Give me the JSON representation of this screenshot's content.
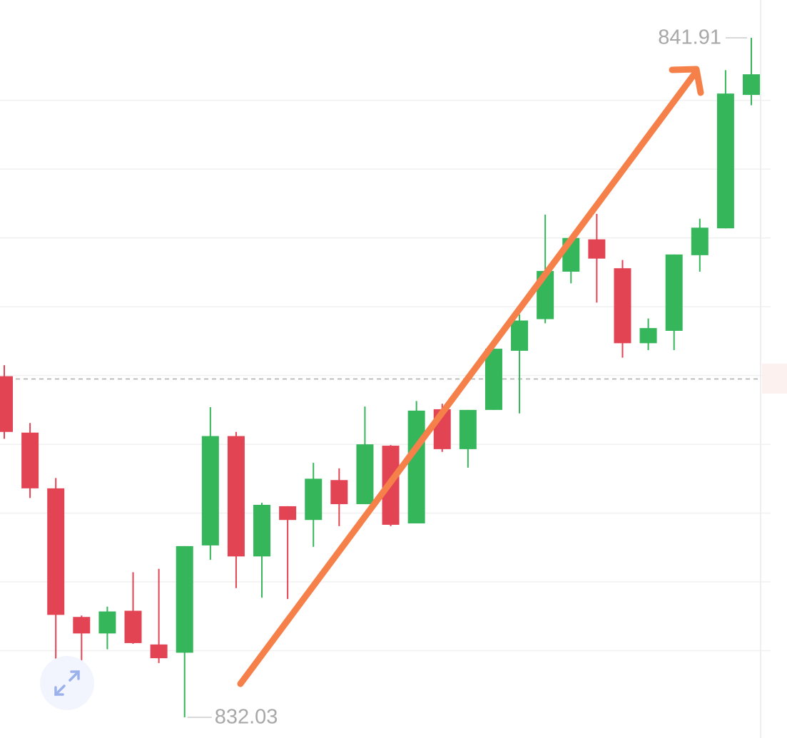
{
  "chart_data": {
    "type": "candlestick",
    "open": [
      836.99,
      836.17,
      835.36,
      833.49,
      833.25,
      833.58,
      833.09,
      832.97,
      834.53,
      836.12,
      834.37,
      835.1,
      834.9,
      835.48,
      835.13,
      835.98,
      834.85,
      836.51,
      835.93,
      836.5,
      837.36,
      837.82,
      838.51,
      838.98,
      838.56,
      837.47,
      837.65,
      838.75,
      839.14,
      841.08
    ],
    "high": [
      837.15,
      836.31,
      835.51,
      833.51,
      833.64,
      834.14,
      834.19,
      834.52,
      836.54,
      836.18,
      835.15,
      835.1,
      835.73,
      835.65,
      836.55,
      835.99,
      836.63,
      836.59,
      836.5,
      837.39,
      837.89,
      839.34,
      839.0,
      839.35,
      838.68,
      837.83,
      838.76,
      839.28,
      841.44,
      841.91
    ],
    "low": [
      836.08,
      835.22,
      832.53,
      832.35,
      833.02,
      833.1,
      832.82,
      832.03,
      834.32,
      833.91,
      833.77,
      833.75,
      834.51,
      834.81,
      835.13,
      834.81,
      834.85,
      835.89,
      835.66,
      836.5,
      836.45,
      837.76,
      838.34,
      838.06,
      837.26,
      837.37,
      837.37,
      838.51,
      839.14,
      840.93
    ],
    "close": [
      836.18,
      835.36,
      833.52,
      833.25,
      833.57,
      833.11,
      832.89,
      834.52,
      836.12,
      834.37,
      835.12,
      834.9,
      835.5,
      835.13,
      836.0,
      834.83,
      836.49,
      835.93,
      836.5,
      837.39,
      837.8,
      838.52,
      839.0,
      838.7,
      837.47,
      837.69,
      838.76,
      839.15,
      841.1,
      841.38
    ],
    "up_color": "#35b65a",
    "down_color": "#e24454",
    "ylim": [
      831.73,
      842.46
    ],
    "yticks": [
      833,
      834,
      835,
      836,
      837,
      838,
      839,
      840,
      841
    ],
    "grid": true,
    "reference_line": 836.95
  }
}
